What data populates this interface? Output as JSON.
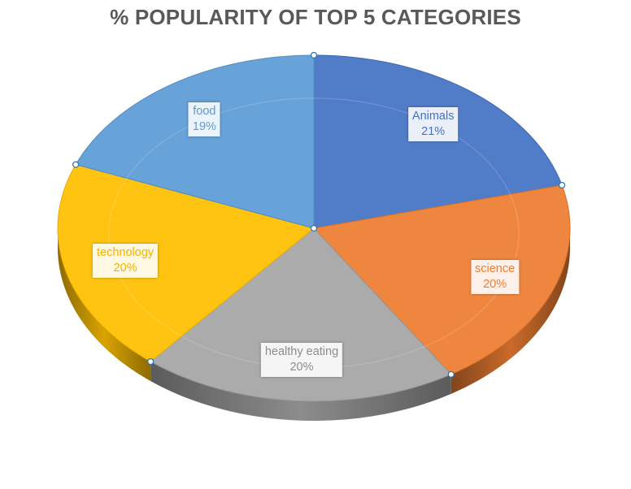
{
  "chart_data": {
    "type": "pie",
    "style": "3d",
    "title": "% POPULARITY OF TOP 5 CATEGORIES",
    "start_angle_deg": 90,
    "direction": "clockwise",
    "legend": "none",
    "data_labels": "category name and value",
    "slices": [
      {
        "label": "Animals",
        "value": 21,
        "value_label": "21%",
        "color": "#4472C4",
        "text_color": "#4472C4"
      },
      {
        "label": "science",
        "value": 20,
        "value_label": "20%",
        "color": "#ED7D31",
        "text_color": "#ED7D31"
      },
      {
        "label": "healthy eating",
        "value": 20,
        "value_label": "20%",
        "color": "#A5A5A5",
        "text_color": "#8C8C8C"
      },
      {
        "label": "technology",
        "value": 20,
        "value_label": "20%",
        "color": "#FFC000",
        "text_color": "#F0B400"
      },
      {
        "label": "food",
        "value": 19,
        "value_label": "19%",
        "color": "#5B9BD5",
        "text_color": "#5B9BD5"
      }
    ]
  }
}
